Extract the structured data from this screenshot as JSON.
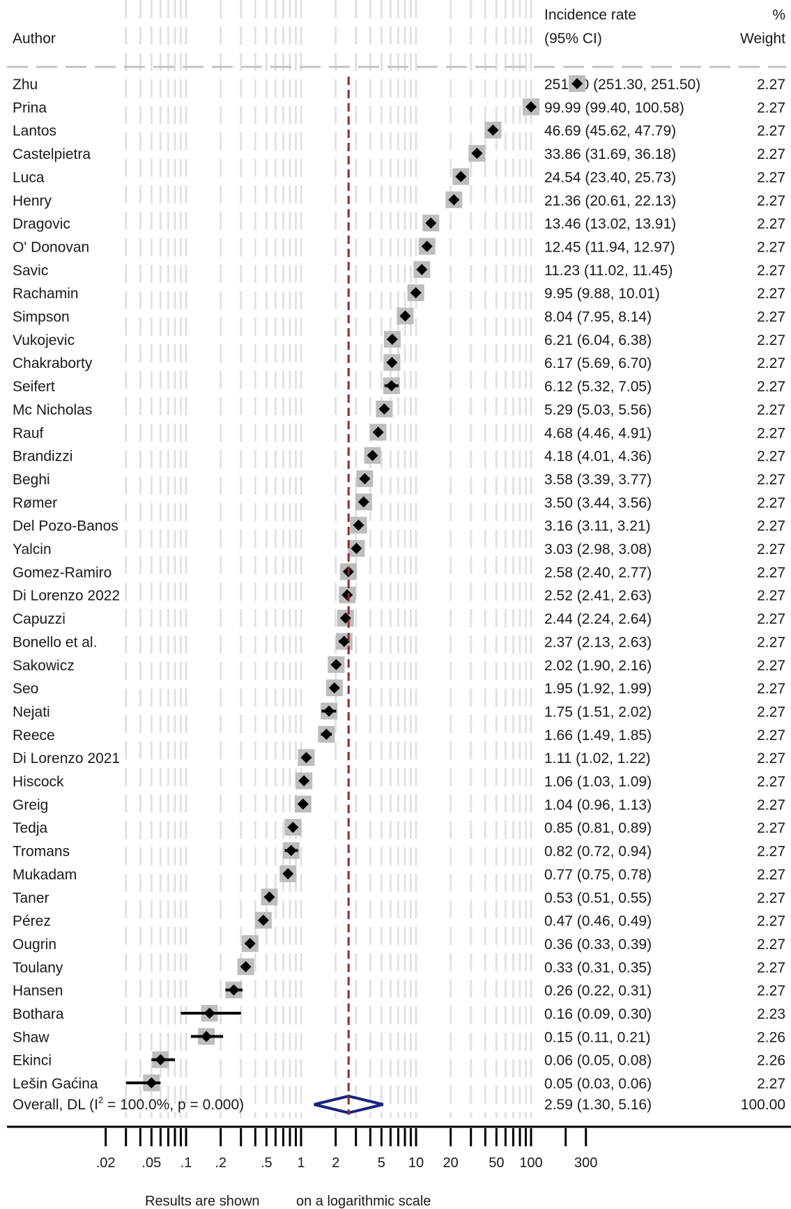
{
  "headers": {
    "author": "Author",
    "effect_line1": "Incidence rate",
    "effect_line2": "(95% CI)",
    "weight_line1": "%",
    "weight_line2": "Weight"
  },
  "footer": {
    "note_part1": "Results are shown",
    "note_part2": "on a logarithmic scale"
  },
  "chart_data": {
    "type": "forest",
    "x_scale": "log",
    "xlim": [
      0.015,
      400
    ],
    "reference_line": 2.59,
    "x_ticks": [
      0.02,
      0.05,
      0.1,
      0.2,
      0.5,
      1,
      2,
      5,
      10,
      20,
      50,
      100,
      300
    ],
    "x_tick_labels": [
      ".02",
      ".05",
      ".1",
      ".2",
      ".5",
      "1",
      "2",
      "5",
      "10",
      "20",
      "50",
      "100",
      "300"
    ],
    "x_minor_ticks": [
      0.03,
      0.04,
      0.06,
      0.07,
      0.08,
      0.09,
      0.3,
      0.4,
      0.6,
      0.7,
      0.8,
      0.9,
      3,
      4,
      6,
      7,
      8,
      9,
      30,
      40,
      60,
      70,
      80,
      90,
      200
    ],
    "studies": [
      {
        "author": "Zhu",
        "est": 251.4,
        "lo": 251.3,
        "hi": 251.5,
        "ci_text": "251.40 (251.30, 251.50)",
        "weight": "2.27"
      },
      {
        "author": "Prina",
        "est": 99.99,
        "lo": 99.4,
        "hi": 100.58,
        "ci_text": "99.99 (99.40, 100.58)",
        "weight": "2.27"
      },
      {
        "author": "Lantos",
        "est": 46.69,
        "lo": 45.62,
        "hi": 47.79,
        "ci_text": "46.69 (45.62, 47.79)",
        "weight": "2.27"
      },
      {
        "author": "Castelpietra",
        "est": 33.86,
        "lo": 31.69,
        "hi": 36.18,
        "ci_text": "33.86 (31.69, 36.18)",
        "weight": "2.27"
      },
      {
        "author": "Luca",
        "est": 24.54,
        "lo": 23.4,
        "hi": 25.73,
        "ci_text": "24.54 (23.40, 25.73)",
        "weight": "2.27"
      },
      {
        "author": "Henry",
        "est": 21.36,
        "lo": 20.61,
        "hi": 22.13,
        "ci_text": "21.36 (20.61, 22.13)",
        "weight": "2.27"
      },
      {
        "author": "Dragovic",
        "est": 13.46,
        "lo": 13.02,
        "hi": 13.91,
        "ci_text": "13.46 (13.02, 13.91)",
        "weight": "2.27"
      },
      {
        "author": "O' Donovan",
        "est": 12.45,
        "lo": 11.94,
        "hi": 12.97,
        "ci_text": "12.45 (11.94, 12.97)",
        "weight": "2.27"
      },
      {
        "author": "Savic",
        "est": 11.23,
        "lo": 11.02,
        "hi": 11.45,
        "ci_text": "11.23 (11.02, 11.45)",
        "weight": "2.27"
      },
      {
        "author": "Rachamin",
        "est": 9.95,
        "lo": 9.88,
        "hi": 10.01,
        "ci_text": "9.95 (9.88, 10.01)",
        "weight": "2.27"
      },
      {
        "author": "Simpson",
        "est": 8.04,
        "lo": 7.95,
        "hi": 8.14,
        "ci_text": "8.04 (7.95, 8.14)",
        "weight": "2.27"
      },
      {
        "author": "Vukojevic",
        "est": 6.21,
        "lo": 6.04,
        "hi": 6.38,
        "ci_text": "6.21 (6.04, 6.38)",
        "weight": "2.27"
      },
      {
        "author": "Chakraborty",
        "est": 6.17,
        "lo": 5.69,
        "hi": 6.7,
        "ci_text": "6.17 (5.69, 6.70)",
        "weight": "2.27"
      },
      {
        "author": "Seifert",
        "est": 6.12,
        "lo": 5.32,
        "hi": 7.05,
        "ci_text": "6.12 (5.32, 7.05)",
        "weight": "2.27"
      },
      {
        "author": "Mc Nicholas",
        "est": 5.29,
        "lo": 5.03,
        "hi": 5.56,
        "ci_text": "5.29 (5.03, 5.56)",
        "weight": "2.27"
      },
      {
        "author": "Rauf",
        "est": 4.68,
        "lo": 4.46,
        "hi": 4.91,
        "ci_text": "4.68 (4.46, 4.91)",
        "weight": "2.27"
      },
      {
        "author": "Brandizzi",
        "est": 4.18,
        "lo": 4.01,
        "hi": 4.36,
        "ci_text": "4.18 (4.01, 4.36)",
        "weight": "2.27"
      },
      {
        "author": "Beghi",
        "est": 3.58,
        "lo": 3.39,
        "hi": 3.77,
        "ci_text": "3.58 (3.39, 3.77)",
        "weight": "2.27"
      },
      {
        "author": "Rømer",
        "est": 3.5,
        "lo": 3.44,
        "hi": 3.56,
        "ci_text": "3.50 (3.44, 3.56)",
        "weight": "2.27"
      },
      {
        "author": "Del Pozo-Banos",
        "est": 3.16,
        "lo": 3.11,
        "hi": 3.21,
        "ci_text": "3.16 (3.11, 3.21)",
        "weight": "2.27"
      },
      {
        "author": "Yalcin",
        "est": 3.03,
        "lo": 2.98,
        "hi": 3.08,
        "ci_text": "3.03 (2.98, 3.08)",
        "weight": "2.27"
      },
      {
        "author": "Gomez-Ramiro",
        "est": 2.58,
        "lo": 2.4,
        "hi": 2.77,
        "ci_text": "2.58 (2.40, 2.77)",
        "weight": "2.27"
      },
      {
        "author": "Di Lorenzo 2022",
        "est": 2.52,
        "lo": 2.41,
        "hi": 2.63,
        "ci_text": "2.52 (2.41, 2.63)",
        "weight": "2.27"
      },
      {
        "author": "Capuzzi",
        "est": 2.44,
        "lo": 2.24,
        "hi": 2.64,
        "ci_text": "2.44 (2.24, 2.64)",
        "weight": "2.27"
      },
      {
        "author": "Bonello et al.",
        "est": 2.37,
        "lo": 2.13,
        "hi": 2.63,
        "ci_text": "2.37 (2.13, 2.63)",
        "weight": "2.27"
      },
      {
        "author": "Sakowicz",
        "est": 2.02,
        "lo": 1.9,
        "hi": 2.16,
        "ci_text": "2.02 (1.90, 2.16)",
        "weight": "2.27"
      },
      {
        "author": "Seo",
        "est": 1.95,
        "lo": 1.92,
        "hi": 1.99,
        "ci_text": "1.95 (1.92, 1.99)",
        "weight": "2.27"
      },
      {
        "author": "Nejati",
        "est": 1.75,
        "lo": 1.51,
        "hi": 2.02,
        "ci_text": "1.75 (1.51, 2.02)",
        "weight": "2.27"
      },
      {
        "author": "Reece",
        "est": 1.66,
        "lo": 1.49,
        "hi": 1.85,
        "ci_text": "1.66 (1.49, 1.85)",
        "weight": "2.27"
      },
      {
        "author": "Di Lorenzo 2021",
        "est": 1.11,
        "lo": 1.02,
        "hi": 1.22,
        "ci_text": "1.11 (1.02, 1.22)",
        "weight": "2.27"
      },
      {
        "author": "Hiscock",
        "est": 1.06,
        "lo": 1.03,
        "hi": 1.09,
        "ci_text": "1.06 (1.03, 1.09)",
        "weight": "2.27"
      },
      {
        "author": "Greig",
        "est": 1.04,
        "lo": 0.96,
        "hi": 1.13,
        "ci_text": "1.04 (0.96, 1.13)",
        "weight": "2.27"
      },
      {
        "author": "Tedja",
        "est": 0.85,
        "lo": 0.81,
        "hi": 0.89,
        "ci_text": "0.85 (0.81, 0.89)",
        "weight": "2.27"
      },
      {
        "author": "Tromans",
        "est": 0.82,
        "lo": 0.72,
        "hi": 0.94,
        "ci_text": "0.82 (0.72, 0.94)",
        "weight": "2.27"
      },
      {
        "author": "Mukadam",
        "est": 0.77,
        "lo": 0.75,
        "hi": 0.78,
        "ci_text": "0.77 (0.75, 0.78)",
        "weight": "2.27"
      },
      {
        "author": "Taner",
        "est": 0.53,
        "lo": 0.51,
        "hi": 0.55,
        "ci_text": "0.53 (0.51, 0.55)",
        "weight": "2.27"
      },
      {
        "author": "Pérez",
        "est": 0.47,
        "lo": 0.46,
        "hi": 0.49,
        "ci_text": "0.47 (0.46, 0.49)",
        "weight": "2.27"
      },
      {
        "author": "Ougrin",
        "est": 0.36,
        "lo": 0.33,
        "hi": 0.39,
        "ci_text": "0.36 (0.33, 0.39)",
        "weight": "2.27"
      },
      {
        "author": "Toulany",
        "est": 0.33,
        "lo": 0.31,
        "hi": 0.35,
        "ci_text": "0.33 (0.31, 0.35)",
        "weight": "2.27"
      },
      {
        "author": "Hansen",
        "est": 0.26,
        "lo": 0.22,
        "hi": 0.31,
        "ci_text": "0.26 (0.22, 0.31)",
        "weight": "2.27"
      },
      {
        "author": "Bothara",
        "est": 0.16,
        "lo": 0.09,
        "hi": 0.3,
        "ci_text": "0.16 (0.09, 0.30)",
        "weight": "2.23"
      },
      {
        "author": "Shaw",
        "est": 0.15,
        "lo": 0.11,
        "hi": 0.21,
        "ci_text": "0.15 (0.11, 0.21)",
        "weight": "2.26"
      },
      {
        "author": "Ekinci",
        "est": 0.06,
        "lo": 0.05,
        "hi": 0.08,
        "ci_text": "0.06 (0.05, 0.08)",
        "weight": "2.26"
      },
      {
        "author": "Lešin Gaćina",
        "est": 0.05,
        "lo": 0.03,
        "hi": 0.06,
        "ci_text": "0.05 (0.03, 0.06)",
        "weight": "2.27"
      }
    ],
    "overall": {
      "label_prefix": "Overall, DL (I",
      "label_sup": "2",
      "label_suffix": " = 100.0%, p = 0.000)",
      "est": 2.59,
      "lo": 1.3,
      "hi": 5.16,
      "ci_text": "2.59 (1.30, 5.16)",
      "weight": "100.00"
    },
    "colors": {
      "marker": "#000000",
      "weight_box": "#bdbdbd",
      "reference_line": "#8b2b2b",
      "overall_diamond": "#1a237e",
      "grid": "#e2e2e2",
      "separator": "#c2c2c2"
    }
  }
}
